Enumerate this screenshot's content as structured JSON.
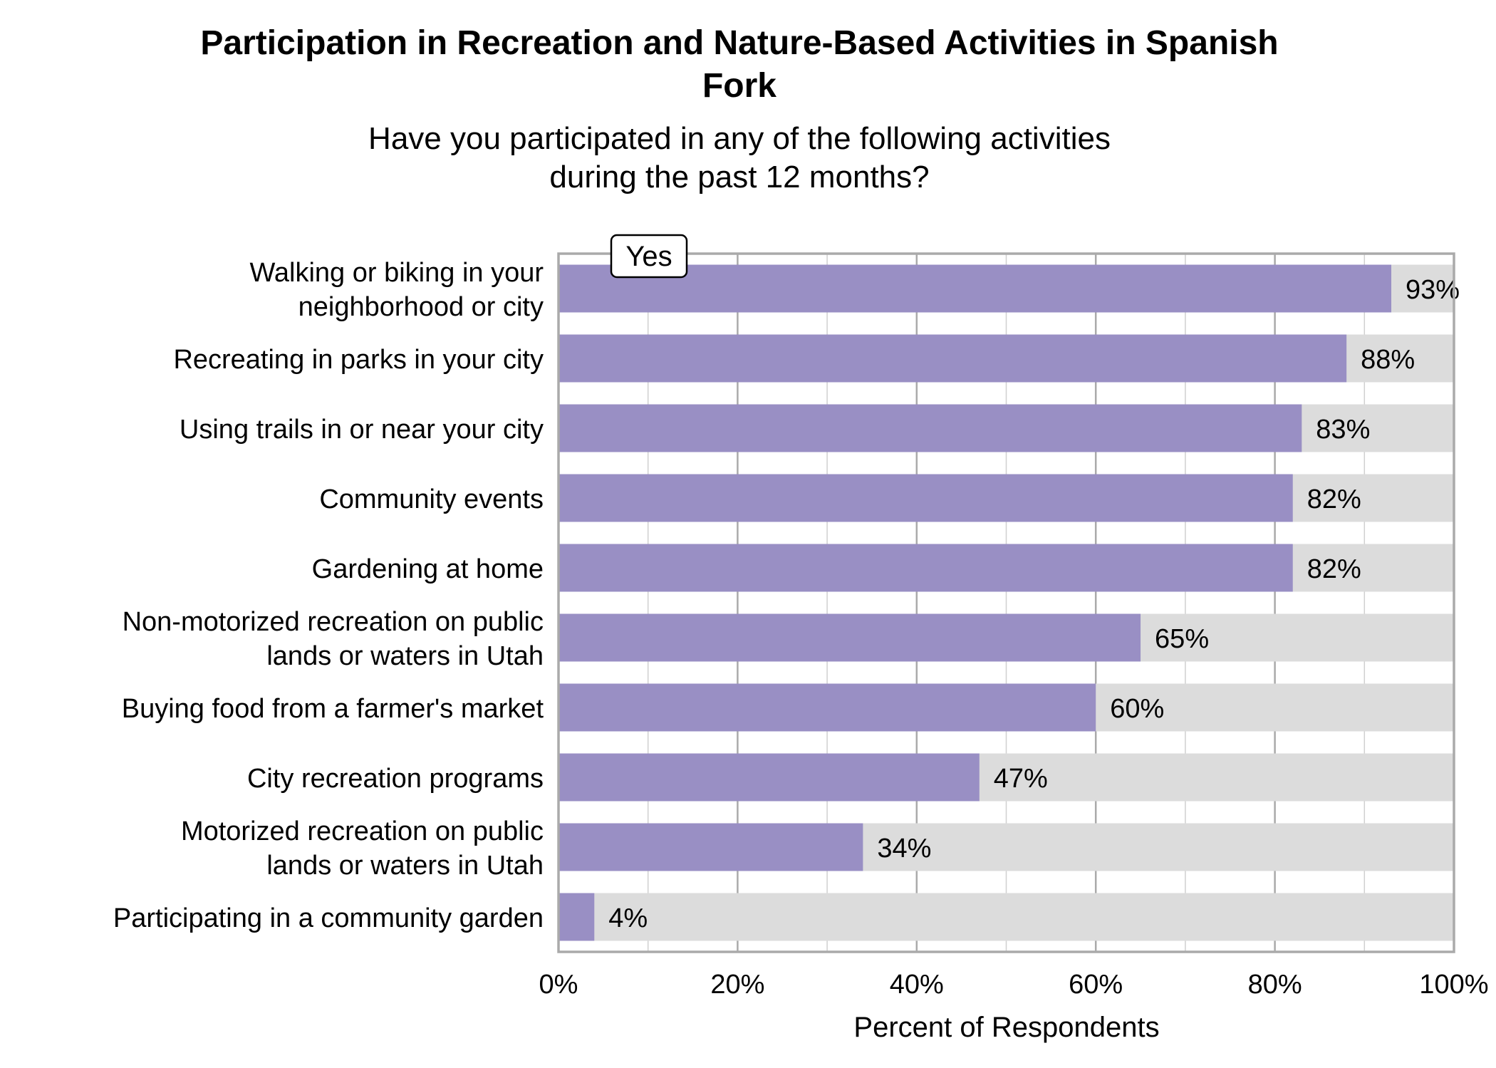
{
  "chart_data": {
    "type": "bar",
    "orientation": "horizontal",
    "stacked_background": true,
    "title": "Participation in Recreation and Nature-Based Activities in Spanish Fork",
    "title_lines": [
      "Participation in Recreation and Nature-Based Activities in Spanish",
      "Fork"
    ],
    "subtitle_lines": [
      "Have you participated in any of the following activities",
      "during the past 12 months?"
    ],
    "xlabel": "Percent of Respondents",
    "ylabel": "",
    "xlim": [
      0,
      100
    ],
    "x_ticks": [
      "0%",
      "20%",
      "40%",
      "60%",
      "80%",
      "100%"
    ],
    "x_tick_values": [
      0,
      20,
      40,
      60,
      80,
      100
    ],
    "grid": true,
    "legend": {
      "placement": "top-left",
      "entries": [
        "Yes"
      ]
    },
    "categories": [
      [
        "Walking or biking in your",
        "neighborhood or city"
      ],
      [
        "Recreating in parks in your city"
      ],
      [
        "Using trails in or near your city"
      ],
      [
        "Community events"
      ],
      [
        "Gardening at home"
      ],
      [
        "Non-motorized recreation on public",
        "lands or waters in Utah"
      ],
      [
        "Buying food from a farmer's market"
      ],
      [
        "City recreation programs"
      ],
      [
        "Motorized recreation on public",
        "lands or waters in Utah"
      ],
      [
        "Participating in a community garden"
      ]
    ],
    "series": [
      {
        "name": "Yes",
        "values": [
          93,
          88,
          83,
          82,
          82,
          65,
          60,
          47,
          34,
          4
        ]
      }
    ],
    "data_labels": [
      "93%",
      "88%",
      "83%",
      "82%",
      "82%",
      "65%",
      "60%",
      "47%",
      "34%",
      "4%"
    ],
    "colors": {
      "yes": "#998fc4",
      "remainder": "#dcdcdc",
      "frame": "#aaaaaa",
      "grid_major": "#aaaaaa",
      "grid_minor": "#d0d0d0"
    }
  }
}
